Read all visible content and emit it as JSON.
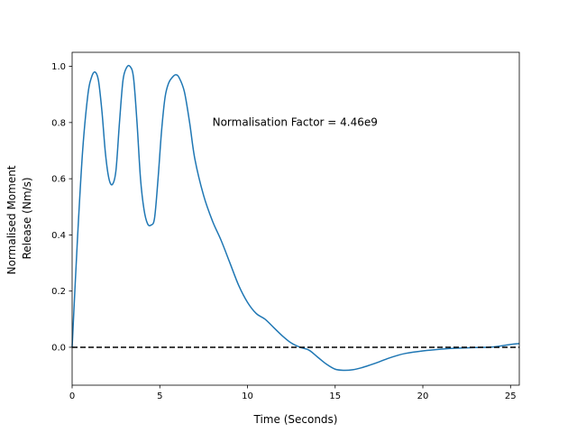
{
  "chart_data": {
    "type": "line",
    "title": "",
    "xlabel": "Time (Seconds)",
    "ylabel_lines": [
      "Normalised Moment",
      "Release (Nm/s)"
    ],
    "xlim": [
      0,
      25.5
    ],
    "ylim": [
      -0.135,
      1.05
    ],
    "xticks": [
      0,
      5,
      10,
      15,
      20,
      25
    ],
    "xtick_labels": [
      "0",
      "5",
      "10",
      "15",
      "20",
      "25"
    ],
    "yticks": [
      0.0,
      0.2,
      0.4,
      0.6,
      0.8,
      1.0
    ],
    "ytick_labels": [
      "0.0",
      "0.2",
      "0.4",
      "0.6",
      "0.8",
      "1.0"
    ],
    "grid": false,
    "annotation": {
      "text": "Normalisation Factor = 4.46e9",
      "x": 8.0,
      "y": 0.8
    },
    "reference_line": {
      "y": 0.0,
      "style": "dashed",
      "color": "#000000"
    },
    "series": [
      {
        "color": "#1f77b4",
        "x": [
          0.0,
          0.3,
          0.6,
          0.9,
          1.1,
          1.3,
          1.5,
          1.7,
          1.9,
          2.1,
          2.3,
          2.5,
          2.7,
          2.9,
          3.1,
          3.3,
          3.5,
          3.7,
          3.9,
          4.1,
          4.3,
          4.5,
          4.7,
          4.9,
          5.1,
          5.3,
          5.5,
          5.7,
          5.9,
          6.1,
          6.4,
          6.7,
          7.0,
          7.5,
          8.0,
          8.5,
          9.0,
          9.5,
          10.0,
          10.5,
          11.0,
          11.5,
          12.0,
          12.5,
          13.0,
          13.5,
          14.0,
          14.5,
          15.0,
          15.5,
          16.0,
          16.5,
          17.0,
          17.5,
          18.0,
          18.5,
          19.0,
          20.0,
          21.0,
          22.0,
          23.0,
          24.0,
          25.0,
          25.5
        ],
        "y": [
          0.0,
          0.38,
          0.7,
          0.9,
          0.96,
          0.98,
          0.95,
          0.84,
          0.69,
          0.6,
          0.58,
          0.63,
          0.8,
          0.95,
          0.995,
          1.0,
          0.96,
          0.8,
          0.6,
          0.49,
          0.44,
          0.435,
          0.46,
          0.6,
          0.77,
          0.89,
          0.94,
          0.96,
          0.97,
          0.96,
          0.91,
          0.8,
          0.67,
          0.54,
          0.45,
          0.38,
          0.3,
          0.22,
          0.16,
          0.12,
          0.1,
          0.07,
          0.04,
          0.015,
          0.0,
          -0.01,
          -0.035,
          -0.06,
          -0.078,
          -0.082,
          -0.08,
          -0.073,
          -0.063,
          -0.052,
          -0.04,
          -0.03,
          -0.022,
          -0.013,
          -0.007,
          -0.003,
          -0.001,
          0.001,
          0.01,
          0.013
        ]
      }
    ]
  }
}
